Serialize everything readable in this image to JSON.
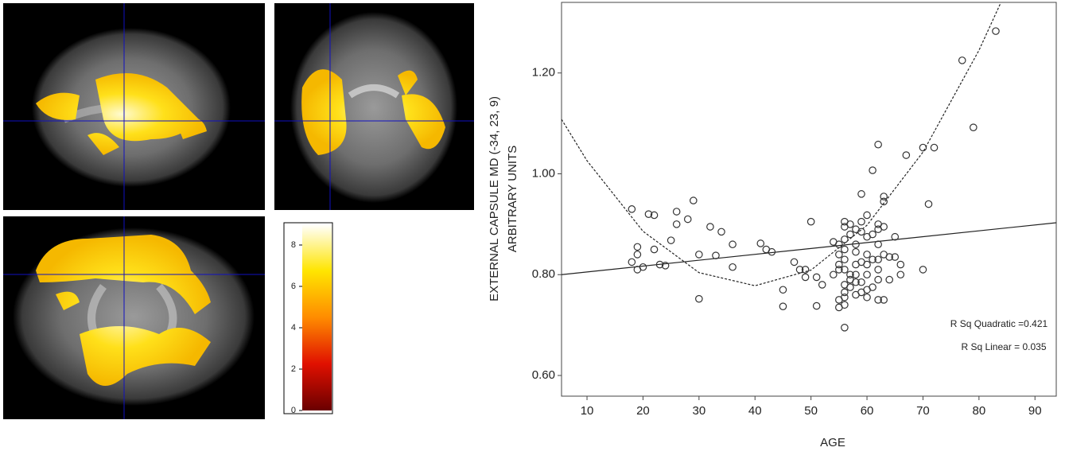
{
  "colorbar": {
    "lim": [
      0,
      9
    ],
    "ticks": [
      0,
      2,
      4,
      6,
      8
    ]
  },
  "chart_data": {
    "type": "scatter",
    "xlabel": "AGE",
    "ylabel_lines": [
      "EXTERNAL CAPSULE MD (-34, 23, 9)",
      "ARBITRARY UNITS"
    ],
    "annotations": [
      "R Sq Quadratic =0.421",
      "R Sq Linear = 0.035"
    ],
    "xlim": [
      5.45,
      93.8
    ],
    "ylim": [
      0.559,
      1.34
    ],
    "xticks": [
      10,
      20,
      30,
      40,
      50,
      60,
      70,
      80,
      90
    ],
    "yticks": [
      {
        "value": 0.6,
        "label": "0.60"
      },
      {
        "value": 0.8,
        "label": "0.80"
      },
      {
        "value": 1.0,
        "label": "1.00"
      },
      {
        "value": 1.2,
        "label": "1.20"
      }
    ],
    "color": "#333333",
    "x": [
      18,
      18,
      19,
      19,
      19,
      20,
      21,
      22,
      22,
      23,
      24,
      25,
      26,
      26,
      28,
      29,
      30,
      30,
      32,
      33,
      34,
      36,
      36,
      41,
      42,
      43,
      45,
      45,
      47,
      48,
      49,
      49,
      50,
      51,
      51,
      52,
      54,
      54,
      55,
      55,
      55,
      55,
      55,
      55,
      56,
      56,
      56,
      56,
      56,
      56,
      56,
      56,
      56,
      56,
      56,
      57,
      57,
      57,
      57,
      57,
      58,
      58,
      58,
      58,
      58,
      58,
      58,
      59,
      59,
      59,
      59,
      59,
      59,
      60,
      60,
      60,
      60,
      60,
      60,
      60,
      61,
      61,
      61,
      61,
      62,
      62,
      62,
      62,
      62,
      62,
      62,
      62,
      63,
      63,
      63,
      63,
      63,
      64,
      64,
      65,
      65,
      66,
      66,
      67,
      70,
      70,
      71,
      72,
      77,
      79,
      83
    ],
    "values": [
      0.93,
      0.825,
      0.855,
      0.84,
      0.81,
      0.815,
      0.92,
      0.918,
      0.85,
      0.82,
      0.818,
      0.868,
      0.925,
      0.9,
      0.91,
      0.947,
      0.84,
      0.752,
      0.895,
      0.838,
      0.885,
      0.86,
      0.815,
      0.862,
      0.85,
      0.845,
      0.77,
      0.737,
      0.825,
      0.81,
      0.795,
      0.81,
      0.905,
      0.738,
      0.795,
      0.78,
      0.865,
      0.8,
      0.86,
      0.84,
      0.82,
      0.81,
      0.75,
      0.735,
      0.905,
      0.895,
      0.87,
      0.85,
      0.83,
      0.81,
      0.78,
      0.765,
      0.755,
      0.74,
      0.695,
      0.9,
      0.88,
      0.8,
      0.79,
      0.775,
      0.89,
      0.86,
      0.845,
      0.82,
      0.8,
      0.785,
      0.76,
      0.96,
      0.905,
      0.885,
      0.825,
      0.785,
      0.765,
      0.918,
      0.875,
      0.84,
      0.82,
      0.8,
      0.77,
      0.755,
      1.007,
      0.88,
      0.83,
      0.775,
      1.058,
      0.9,
      0.89,
      0.86,
      0.83,
      0.81,
      0.79,
      0.75,
      0.955,
      0.945,
      0.895,
      0.84,
      0.75,
      0.835,
      0.79,
      0.875,
      0.835,
      0.82,
      0.8,
      1.037,
      1.052,
      0.81,
      0.94,
      1.052,
      1.225,
      1.092,
      1.283
    ],
    "fits": [
      {
        "x": [
          5.45,
          10,
          20,
          30,
          40,
          50,
          60,
          70,
          80,
          83.8
        ],
        "values": [
          1.108,
          1.026,
          0.886,
          0.804,
          0.778,
          0.809,
          0.898,
          1.043,
          1.245,
          1.337
        ],
        "dash": true
      },
      {
        "x": [
          5.45,
          93.8
        ],
        "values": [
          0.8,
          0.903
        ],
        "dash": false
      }
    ]
  }
}
